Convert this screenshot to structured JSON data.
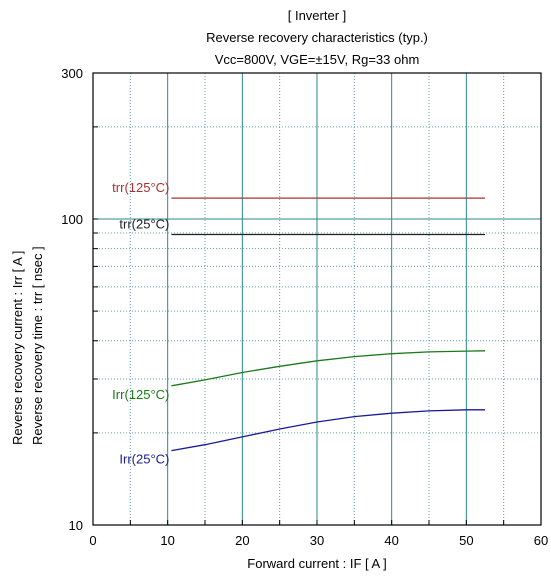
{
  "chart_data": {
    "type": "line",
    "title": "[ Inverter ]",
    "subtitle": "Reverse recovery characteristics  (typ.)",
    "conditions": "Vcc=800V, VGE=±15V, Rg=33 ohm",
    "xlabel": "Forward current  :  IF  [ A ]",
    "ylabel_line1": "Reverse recovery current  :  Irr  [ A ]",
    "ylabel_line2": "Reverse recovery time  :  trr  [ nsec ]",
    "xlim": [
      0,
      60
    ],
    "ylim": [
      10,
      300
    ],
    "yscale": "log",
    "grid": true,
    "xticks": [
      0,
      10,
      20,
      30,
      40,
      50,
      60
    ],
    "xtick_labels": [
      "0",
      "10",
      "20",
      "30",
      "40",
      "50",
      "60"
    ],
    "yticks": [
      10,
      100,
      300
    ],
    "ytick_labels": [
      "10",
      "100",
      "300"
    ],
    "series": [
      {
        "name": "trr(125°C)",
        "color": "#a83232",
        "x": [
          10.5,
          15,
          20,
          25,
          30,
          35,
          40,
          45,
          52.5
        ],
        "y": [
          117,
          117,
          117,
          117,
          117,
          117,
          117,
          117,
          117
        ]
      },
      {
        "name": "trr(25°C)",
        "color": "#222222",
        "x": [
          10.5,
          15,
          20,
          25,
          30,
          35,
          40,
          45,
          52.5
        ],
        "y": [
          89,
          89,
          89,
          89,
          89,
          89,
          89,
          89,
          89
        ]
      },
      {
        "name": "Irr(125°C)",
        "color": "#1a7a1a",
        "x": [
          10.5,
          15,
          20,
          25,
          30,
          35,
          40,
          45,
          50,
          52.5
        ],
        "y": [
          28.5,
          29.8,
          31.5,
          33.0,
          34.4,
          35.5,
          36.3,
          36.8,
          37.0,
          37.1
        ]
      },
      {
        "name": "Irr(25°C)",
        "color": "#1a1a99",
        "x": [
          10.5,
          15,
          20,
          25,
          30,
          35,
          40,
          45,
          50,
          52.5
        ],
        "y": [
          17.5,
          18.3,
          19.4,
          20.6,
          21.7,
          22.6,
          23.2,
          23.6,
          23.8,
          23.8
        ]
      }
    ]
  }
}
